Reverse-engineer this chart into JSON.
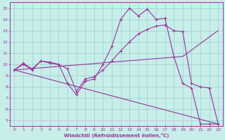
{
  "xlabel": "Windchill (Refroidissement éolien,°C)",
  "bg_color": "#c8eeea",
  "line_color": "#993399",
  "grid_color": "#99cccc",
  "x_ticks": [
    0,
    1,
    2,
    3,
    4,
    5,
    6,
    7,
    8,
    9,
    10,
    11,
    12,
    13,
    14,
    15,
    16,
    17,
    18,
    19,
    20,
    21,
    22,
    23
  ],
  "y_ticks": [
    5,
    6,
    7,
    8,
    9,
    10,
    11,
    12,
    13,
    14,
    15
  ],
  "xlim": [
    -0.5,
    23.5
  ],
  "ylim": [
    4.5,
    15.5
  ],
  "line1_x": [
    0,
    1,
    2,
    3,
    4,
    5,
    6,
    7,
    8,
    9,
    10,
    11,
    12,
    13,
    14,
    15,
    16,
    17,
    18,
    19,
    20,
    21,
    22,
    23
  ],
  "line1_y": [
    9.5,
    10.1,
    9.6,
    10.3,
    10.2,
    10.0,
    8.3,
    7.3,
    8.5,
    8.7,
    10.0,
    11.6,
    14.0,
    15.0,
    14.3,
    14.9,
    14.0,
    14.1,
    10.7,
    8.3,
    7.9,
    4.7,
    4.7,
    4.7
  ],
  "line2_x": [
    0,
    1,
    2,
    3,
    4,
    5,
    6,
    7,
    8,
    9,
    10,
    11,
    12,
    13,
    14,
    15,
    16,
    17,
    18,
    19,
    20,
    21,
    22,
    23
  ],
  "line2_y": [
    9.5,
    10.0,
    9.5,
    10.3,
    10.1,
    10.0,
    9.6,
    7.6,
    8.7,
    8.9,
    9.5,
    10.3,
    11.2,
    12.0,
    12.7,
    13.1,
    13.4,
    13.5,
    13.0,
    12.9,
    8.3,
    8.0,
    7.9,
    4.7
  ],
  "line3_x": [
    0,
    23
  ],
  "line3_y": [
    9.5,
    4.7
  ],
  "line4_x": [
    0,
    19,
    23
  ],
  "line4_y": [
    9.5,
    10.7,
    13.0
  ]
}
